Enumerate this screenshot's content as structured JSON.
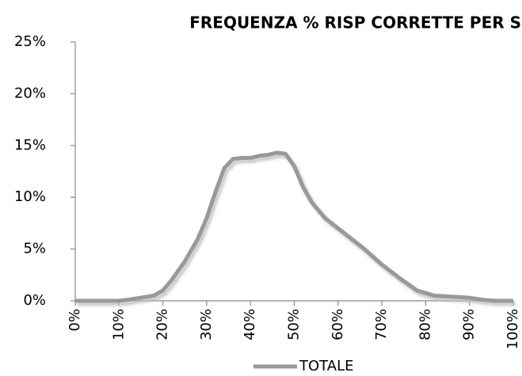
{
  "chart_data": {
    "type": "line",
    "title": "FREQUENZA % RISP CORRETTE PER S",
    "x": [
      0,
      5,
      10,
      12,
      15,
      18,
      20,
      22,
      25,
      28,
      30,
      32,
      34,
      36,
      38,
      40,
      42,
      44,
      46,
      48,
      50,
      52,
      54,
      57,
      60,
      63,
      66,
      70,
      74,
      78,
      82,
      86,
      90,
      93,
      96,
      100
    ],
    "series": [
      {
        "name": "TOTALE",
        "color": "#999999",
        "values": [
          0,
          0,
          0,
          0.1,
          0.3,
          0.5,
          1,
          2,
          3.8,
          6,
          8,
          10.5,
          12.8,
          13.7,
          13.8,
          13.8,
          14,
          14.1,
          14.3,
          14.2,
          13,
          11,
          9.5,
          8,
          7,
          6,
          5,
          3.5,
          2.2,
          1,
          0.5,
          0.4,
          0.3,
          0.1,
          0,
          0
        ]
      }
    ],
    "xlim": [
      0,
      100
    ],
    "xticks": [
      {
        "value": 0,
        "label": "0%"
      },
      {
        "value": 10,
        "label": "10%"
      },
      {
        "value": 20,
        "label": "20%"
      },
      {
        "value": 30,
        "label": "30%"
      },
      {
        "value": 40,
        "label": "40%"
      },
      {
        "value": 50,
        "label": "50%"
      },
      {
        "value": 60,
        "label": "60%"
      },
      {
        "value": 70,
        "label": "70%"
      },
      {
        "value": 80,
        "label": "80%"
      },
      {
        "value": 90,
        "label": "90%"
      },
      {
        "value": 100,
        "label": "100%"
      }
    ],
    "ylim": [
      0,
      25
    ],
    "yticks": [
      {
        "value": 0,
        "label": "0%"
      },
      {
        "value": 5,
        "label": "5%"
      },
      {
        "value": 10,
        "label": "10%"
      },
      {
        "value": 15,
        "label": "15%"
      },
      {
        "value": 20,
        "label": "20%"
      },
      {
        "value": 25,
        "label": "25%"
      }
    ],
    "grid": false,
    "legend": "bottom"
  }
}
